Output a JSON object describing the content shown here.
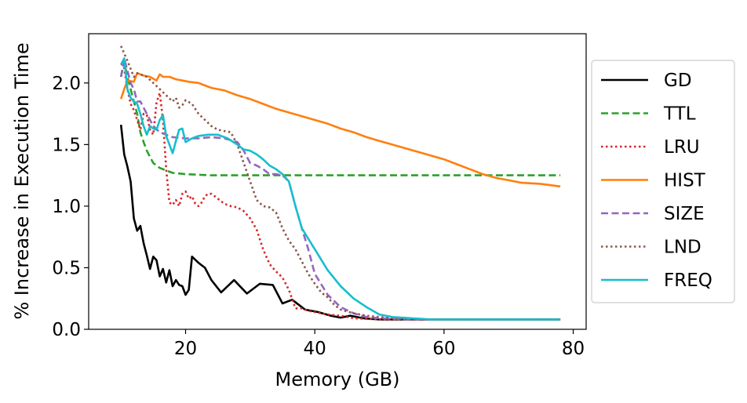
{
  "chart_data": {
    "type": "line",
    "title": "",
    "xlabel": "Memory (GB)",
    "ylabel": "% Increase in Execution Time",
    "xlim": [
      5,
      82
    ],
    "ylim": [
      0,
      2.4
    ],
    "xticks": [
      20,
      40,
      60,
      80
    ],
    "yticks": [
      0.0,
      0.5,
      1.0,
      1.5,
      2.0
    ],
    "xtick_labels": [
      "20",
      "40",
      "60",
      "80"
    ],
    "ytick_labels": [
      "0.0",
      "0.5",
      "1.0",
      "1.5",
      "2.0"
    ],
    "grid": false,
    "legend_position": "right, outside plot",
    "series": [
      {
        "name": "GD",
        "color": "#000000",
        "dash": "solid",
        "points": [
          [
            10,
            1.66
          ],
          [
            10.5,
            1.42
          ],
          [
            11,
            1.32
          ],
          [
            11.5,
            1.2
          ],
          [
            12,
            0.9
          ],
          [
            12.5,
            0.8
          ],
          [
            13,
            0.84
          ],
          [
            13.5,
            0.7
          ],
          [
            14,
            0.6
          ],
          [
            14.5,
            0.49
          ],
          [
            15,
            0.59
          ],
          [
            15.5,
            0.56
          ],
          [
            16,
            0.43
          ],
          [
            16.5,
            0.49
          ],
          [
            17,
            0.38
          ],
          [
            17.5,
            0.48
          ],
          [
            18,
            0.35
          ],
          [
            18.5,
            0.4
          ],
          [
            19,
            0.36
          ],
          [
            19.5,
            0.35
          ],
          [
            20,
            0.28
          ],
          [
            20.5,
            0.32
          ],
          [
            21,
            0.59
          ],
          [
            22,
            0.54
          ],
          [
            23,
            0.5
          ],
          [
            24,
            0.4
          ],
          [
            25.5,
            0.3
          ],
          [
            27.5,
            0.4
          ],
          [
            29.5,
            0.29
          ],
          [
            31.5,
            0.37
          ],
          [
            33.5,
            0.36
          ],
          [
            35,
            0.21
          ],
          [
            36.5,
            0.24
          ],
          [
            38.5,
            0.16
          ],
          [
            40.5,
            0.14
          ],
          [
            42.5,
            0.11
          ],
          [
            44,
            0.095
          ],
          [
            45.5,
            0.11
          ],
          [
            47.5,
            0.09
          ],
          [
            50,
            0.08
          ],
          [
            54,
            0.08
          ],
          [
            58,
            0.08
          ],
          [
            78,
            0.08
          ]
        ]
      },
      {
        "name": "TTL",
        "color": "#2ca02c",
        "dash": "dashed",
        "points": [
          [
            10,
            2.05
          ],
          [
            10.5,
            2.17
          ],
          [
            11,
            2.05
          ],
          [
            11.5,
            1.95
          ],
          [
            12,
            1.85
          ],
          [
            12.5,
            1.75
          ],
          [
            13,
            1.6
          ],
          [
            13.5,
            1.52
          ],
          [
            14,
            1.45
          ],
          [
            14.5,
            1.4
          ],
          [
            15,
            1.35
          ],
          [
            16,
            1.31
          ],
          [
            17,
            1.29
          ],
          [
            18,
            1.27
          ],
          [
            20,
            1.26
          ],
          [
            24,
            1.25
          ],
          [
            30,
            1.25
          ],
          [
            40,
            1.25
          ],
          [
            60,
            1.25
          ],
          [
            78,
            1.25
          ]
        ]
      },
      {
        "name": "LRU",
        "color": "#d62728",
        "dash": "dotted",
        "points": [
          [
            10,
            2.16
          ],
          [
            10.5,
            2.12
          ],
          [
            11,
            1.95
          ],
          [
            11.5,
            1.83
          ],
          [
            12,
            1.78
          ],
          [
            12.5,
            1.7
          ],
          [
            13,
            1.62
          ],
          [
            13.5,
            1.75
          ],
          [
            14,
            1.74
          ],
          [
            14.5,
            1.62
          ],
          [
            15,
            1.58
          ],
          [
            15.5,
            1.84
          ],
          [
            16,
            1.92
          ],
          [
            16.5,
            1.7
          ],
          [
            17,
            1.3
          ],
          [
            17.5,
            1.03
          ],
          [
            18,
            1.01
          ],
          [
            18.5,
            1.05
          ],
          [
            19,
            1.0
          ],
          [
            19.5,
            1.1
          ],
          [
            20,
            1.12
          ],
          [
            20.5,
            1.06
          ],
          [
            21,
            1.08
          ],
          [
            21.5,
            1.02
          ],
          [
            22,
            1.0
          ],
          [
            22.5,
            1.03
          ],
          [
            23,
            1.08
          ],
          [
            23.5,
            1.1
          ],
          [
            24,
            1.1
          ],
          [
            24.5,
            1.08
          ],
          [
            25,
            1.06
          ],
          [
            26,
            1.02
          ],
          [
            27,
            1.0
          ],
          [
            28,
            0.99
          ],
          [
            29,
            0.96
          ],
          [
            30,
            0.9
          ],
          [
            31,
            0.81
          ],
          [
            32,
            0.65
          ],
          [
            33,
            0.53
          ],
          [
            34,
            0.47
          ],
          [
            35,
            0.42
          ],
          [
            36,
            0.32
          ],
          [
            37,
            0.17
          ],
          [
            38,
            0.17
          ],
          [
            39,
            0.15
          ],
          [
            40,
            0.14
          ],
          [
            42,
            0.12
          ],
          [
            44,
            0.11
          ],
          [
            46,
            0.09
          ],
          [
            50,
            0.08
          ],
          [
            56,
            0.08
          ],
          [
            78,
            0.08
          ]
        ]
      },
      {
        "name": "HIST",
        "color": "#ff7f0e",
        "dash": "solid",
        "points": [
          [
            10,
            1.87
          ],
          [
            10.5,
            1.95
          ],
          [
            11,
            2.02
          ],
          [
            12,
            2.01
          ],
          [
            12.5,
            2.08
          ],
          [
            13.5,
            2.06
          ],
          [
            14.5,
            2.05
          ],
          [
            15.5,
            2.02
          ],
          [
            16,
            2.07
          ],
          [
            16.5,
            2.05
          ],
          [
            17.5,
            2.05
          ],
          [
            18.5,
            2.03
          ],
          [
            19.5,
            2.02
          ],
          [
            20.5,
            2.01
          ],
          [
            22,
            2.0
          ],
          [
            24,
            1.96
          ],
          [
            26,
            1.94
          ],
          [
            28,
            1.9
          ],
          [
            30,
            1.87
          ],
          [
            32,
            1.83
          ],
          [
            34,
            1.79
          ],
          [
            36,
            1.76
          ],
          [
            38,
            1.73
          ],
          [
            40,
            1.7
          ],
          [
            42,
            1.67
          ],
          [
            44,
            1.63
          ],
          [
            46,
            1.6
          ],
          [
            48,
            1.56
          ],
          [
            50,
            1.53
          ],
          [
            52,
            1.5
          ],
          [
            54,
            1.47
          ],
          [
            56,
            1.44
          ],
          [
            58,
            1.41
          ],
          [
            60,
            1.38
          ],
          [
            62,
            1.34
          ],
          [
            64,
            1.3
          ],
          [
            66,
            1.26
          ],
          [
            68,
            1.23
          ],
          [
            70,
            1.21
          ],
          [
            72,
            1.19
          ],
          [
            75,
            1.18
          ],
          [
            78,
            1.16
          ]
        ]
      },
      {
        "name": "SIZE",
        "color": "#9467bd",
        "dash": "dashed",
        "points": [
          [
            10,
            2.05
          ],
          [
            10.5,
            2.2
          ],
          [
            11,
            2.1
          ],
          [
            11.5,
            2.0
          ],
          [
            12,
            1.95
          ],
          [
            12.5,
            1.85
          ],
          [
            13,
            1.85
          ],
          [
            13.5,
            1.8
          ],
          [
            14,
            1.75
          ],
          [
            14.5,
            1.7
          ],
          [
            15,
            1.65
          ],
          [
            16,
            1.6
          ],
          [
            17,
            1.58
          ],
          [
            18,
            1.56
          ],
          [
            20,
            1.55
          ],
          [
            22,
            1.55
          ],
          [
            24,
            1.56
          ],
          [
            26,
            1.55
          ],
          [
            28,
            1.52
          ],
          [
            29,
            1.45
          ],
          [
            30,
            1.35
          ],
          [
            31,
            1.33
          ],
          [
            32,
            1.3
          ],
          [
            33,
            1.26
          ],
          [
            34,
            1.26
          ],
          [
            35,
            1.25
          ],
          [
            36,
            1.2
          ],
          [
            37,
            1.0
          ],
          [
            38,
            0.82
          ],
          [
            39,
            0.65
          ],
          [
            40,
            0.45
          ],
          [
            42,
            0.28
          ],
          [
            44,
            0.18
          ],
          [
            46,
            0.13
          ],
          [
            48,
            0.1
          ],
          [
            50,
            0.09
          ],
          [
            52,
            0.085
          ],
          [
            55,
            0.08
          ],
          [
            78,
            0.08
          ]
        ]
      },
      {
        "name": "LND",
        "color": "#8c564b",
        "dash": "dotted",
        "points": [
          [
            10,
            2.3
          ],
          [
            11,
            2.18
          ],
          [
            12,
            2.05
          ],
          [
            12.5,
            2.08
          ],
          [
            13,
            2.07
          ],
          [
            14,
            2.05
          ],
          [
            15,
            2.0
          ],
          [
            16,
            1.95
          ],
          [
            17,
            1.9
          ],
          [
            18,
            1.85
          ],
          [
            18.5,
            1.88
          ],
          [
            19,
            1.8
          ],
          [
            19.5,
            1.82
          ],
          [
            20,
            1.86
          ],
          [
            21,
            1.83
          ],
          [
            22,
            1.75
          ],
          [
            23,
            1.7
          ],
          [
            24,
            1.65
          ],
          [
            25,
            1.62
          ],
          [
            26,
            1.61
          ],
          [
            27,
            1.6
          ],
          [
            28,
            1.5
          ],
          [
            29,
            1.35
          ],
          [
            30,
            1.2
          ],
          [
            31,
            1.05
          ],
          [
            32,
            1.0
          ],
          [
            33,
            0.99
          ],
          [
            34,
            0.95
          ],
          [
            35,
            0.82
          ],
          [
            36,
            0.72
          ],
          [
            37,
            0.65
          ],
          [
            38,
            0.55
          ],
          [
            39,
            0.45
          ],
          [
            40,
            0.37
          ],
          [
            41,
            0.3
          ],
          [
            42,
            0.26
          ],
          [
            43,
            0.2
          ],
          [
            44,
            0.16
          ],
          [
            46,
            0.13
          ],
          [
            48,
            0.11
          ],
          [
            50,
            0.1
          ],
          [
            52,
            0.09
          ],
          [
            55,
            0.08
          ],
          [
            78,
            0.08
          ]
        ]
      },
      {
        "name": "FREQ",
        "color": "#17becf",
        "dash": "solid",
        "points": [
          [
            10,
            2.15
          ],
          [
            10.5,
            2.2
          ],
          [
            11,
            1.95
          ],
          [
            11.5,
            1.88
          ],
          [
            12,
            1.85
          ],
          [
            12.5,
            1.83
          ],
          [
            13,
            1.75
          ],
          [
            13.5,
            1.65
          ],
          [
            14,
            1.58
          ],
          [
            14.5,
            1.65
          ],
          [
            15,
            1.63
          ],
          [
            15.5,
            1.62
          ],
          [
            16,
            1.7
          ],
          [
            16.5,
            1.74
          ],
          [
            17,
            1.57
          ],
          [
            17.5,
            1.5
          ],
          [
            18,
            1.43
          ],
          [
            18.5,
            1.53
          ],
          [
            19,
            1.62
          ],
          [
            19.5,
            1.63
          ],
          [
            20,
            1.52
          ],
          [
            21,
            1.55
          ],
          [
            22,
            1.57
          ],
          [
            23.5,
            1.58
          ],
          [
            25,
            1.58
          ],
          [
            26.5,
            1.55
          ],
          [
            28,
            1.5
          ],
          [
            29,
            1.46
          ],
          [
            30,
            1.45
          ],
          [
            31,
            1.42
          ],
          [
            32,
            1.38
          ],
          [
            33,
            1.33
          ],
          [
            34,
            1.3
          ],
          [
            35,
            1.26
          ],
          [
            36,
            1.2
          ],
          [
            37,
            1.0
          ],
          [
            38,
            0.82
          ],
          [
            40,
            0.65
          ],
          [
            42,
            0.48
          ],
          [
            44,
            0.35
          ],
          [
            46,
            0.25
          ],
          [
            48,
            0.18
          ],
          [
            50,
            0.12
          ],
          [
            52,
            0.1
          ],
          [
            55,
            0.09
          ],
          [
            58,
            0.08
          ],
          [
            78,
            0.08
          ]
        ]
      }
    ]
  }
}
